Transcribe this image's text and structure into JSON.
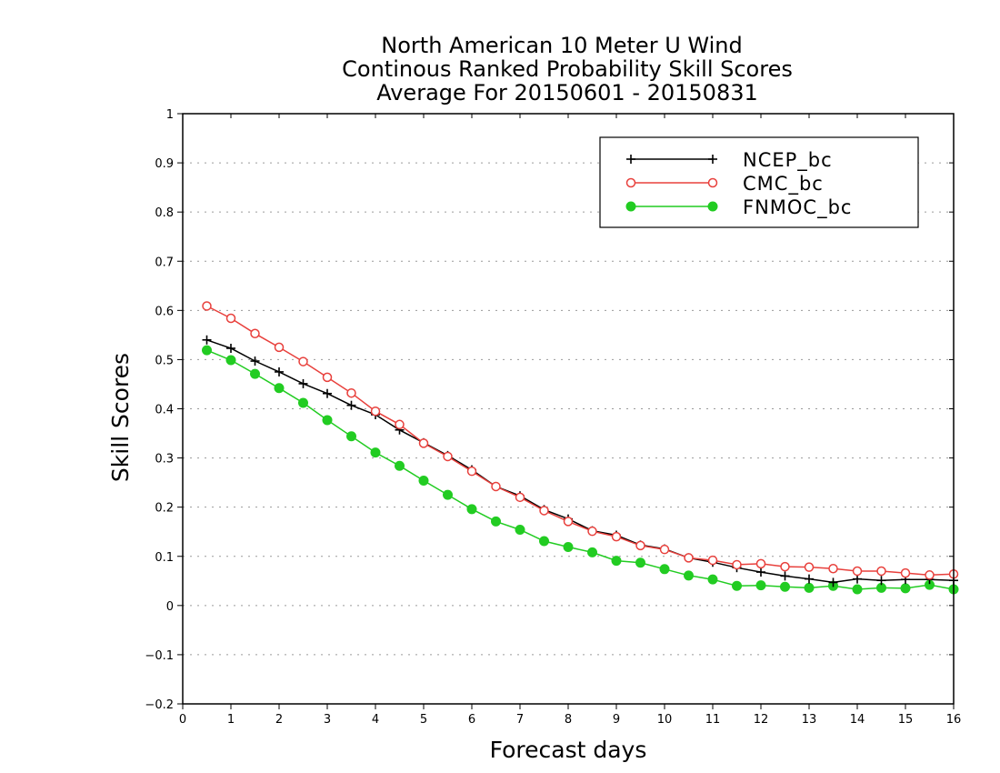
{
  "chart_data": {
    "type": "line",
    "title_lines": [
      "North American 10 Meter U Wind",
      "Continous Ranked Probability Skill Scores",
      "Average For 20150601 - 20150831"
    ],
    "xlabel": "Forecast days",
    "ylabel": "Skill Scores",
    "xlim": [
      0,
      16
    ],
    "ylim": [
      -0.2,
      1
    ],
    "xticks": [
      0,
      1,
      2,
      3,
      4,
      5,
      6,
      7,
      8,
      9,
      10,
      11,
      12,
      13,
      14,
      15,
      16
    ],
    "yticks": [
      -0.2,
      -0.1,
      0,
      0.1,
      0.2,
      0.3,
      0.4,
      0.5,
      0.6,
      0.7,
      0.8,
      0.9,
      1
    ],
    "ytick_labels": [
      "-0.2",
      "-0.1",
      "0",
      "0.1",
      "0.2",
      "0.3",
      "0.4",
      "0.5",
      "0.6",
      "0.7",
      "0.8",
      "0.9",
      "1"
    ],
    "grid": "horizontal-dotted",
    "legend_position": "top-right",
    "x": [
      0.5,
      1,
      1.5,
      2,
      2.5,
      3,
      3.5,
      4,
      4.5,
      5,
      5.5,
      6,
      6.5,
      7,
      7.5,
      8,
      8.5,
      9,
      9.5,
      10,
      10.5,
      11,
      11.5,
      12,
      12.5,
      13,
      13.5,
      14,
      14.5,
      15,
      15.5,
      16
    ],
    "series": [
      {
        "name": "NCEP_bc",
        "color": "#000000",
        "marker": "plus",
        "values": [
          0.54,
          0.523,
          0.497,
          0.475,
          0.451,
          0.431,
          0.407,
          0.388,
          0.357,
          0.331,
          0.305,
          0.276,
          0.242,
          0.223,
          0.195,
          0.176,
          0.152,
          0.143,
          0.123,
          0.115,
          0.097,
          0.088,
          0.077,
          0.068,
          0.06,
          0.054,
          0.047,
          0.054,
          0.051,
          0.053,
          0.053,
          0.051
        ]
      },
      {
        "name": "CMC_bc",
        "color": "#e8403c",
        "marker": "open-circle",
        "values": [
          0.609,
          0.584,
          0.553,
          0.525,
          0.496,
          0.464,
          0.432,
          0.395,
          0.368,
          0.33,
          0.303,
          0.273,
          0.242,
          0.22,
          0.193,
          0.171,
          0.151,
          0.14,
          0.122,
          0.114,
          0.097,
          0.092,
          0.083,
          0.085,
          0.079,
          0.078,
          0.075,
          0.07,
          0.07,
          0.066,
          0.062,
          0.064
        ]
      },
      {
        "name": "FNMOC_bc",
        "color": "#22cc22",
        "marker": "filled-circle",
        "values": [
          0.519,
          0.499,
          0.471,
          0.442,
          0.412,
          0.377,
          0.344,
          0.311,
          0.284,
          0.254,
          0.225,
          0.196,
          0.171,
          0.154,
          0.131,
          0.119,
          0.108,
          0.091,
          0.087,
          0.074,
          0.061,
          0.053,
          0.04,
          0.041,
          0.038,
          0.036,
          0.04,
          0.033,
          0.036,
          0.035,
          0.042,
          0.033
        ]
      }
    ]
  }
}
